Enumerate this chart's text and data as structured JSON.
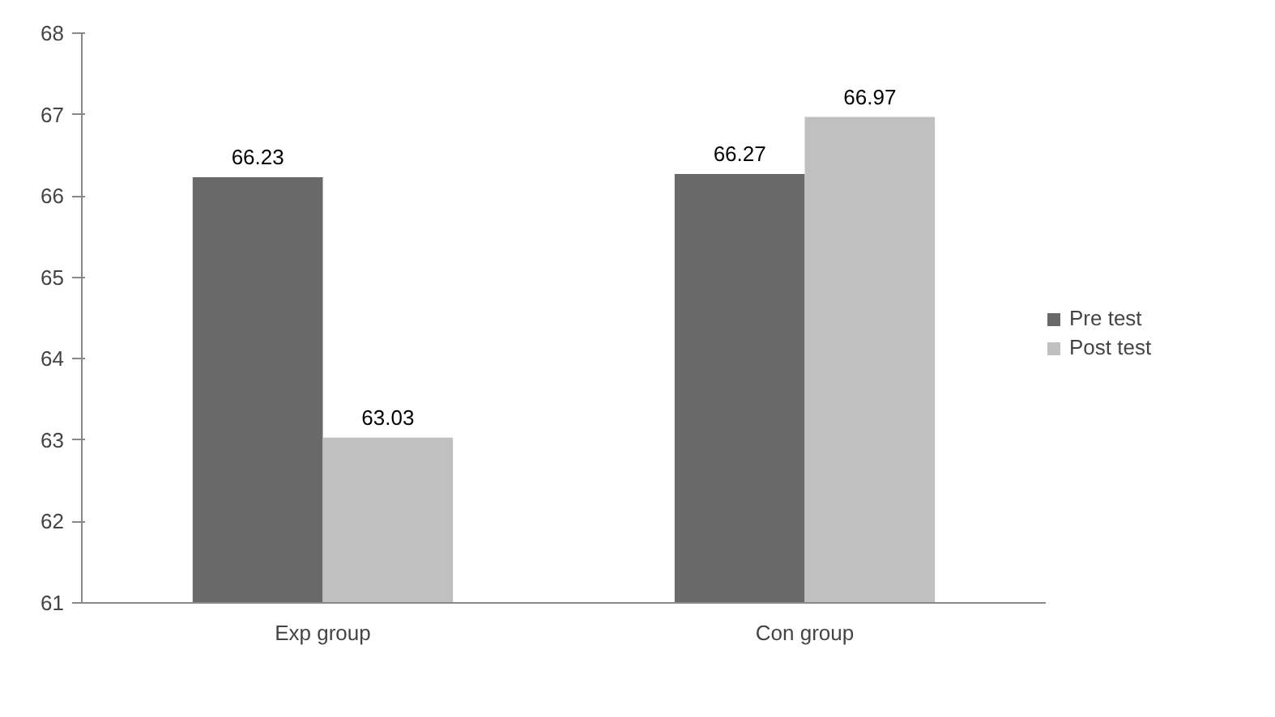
{
  "chart_data": {
    "type": "bar",
    "categories": [
      "Exp group",
      "Con group"
    ],
    "series": [
      {
        "name": "Pre test",
        "color": "#696969",
        "values": [
          66.23,
          66.27
        ]
      },
      {
        "name": "Post test",
        "color": "#c0c0c0",
        "values": [
          63.03,
          66.97
        ]
      }
    ],
    "ylim": [
      61,
      68
    ],
    "yticks": [
      61,
      62,
      63,
      64,
      65,
      66,
      67,
      68
    ],
    "data_labels": true,
    "legend": "right",
    "grid": false
  }
}
